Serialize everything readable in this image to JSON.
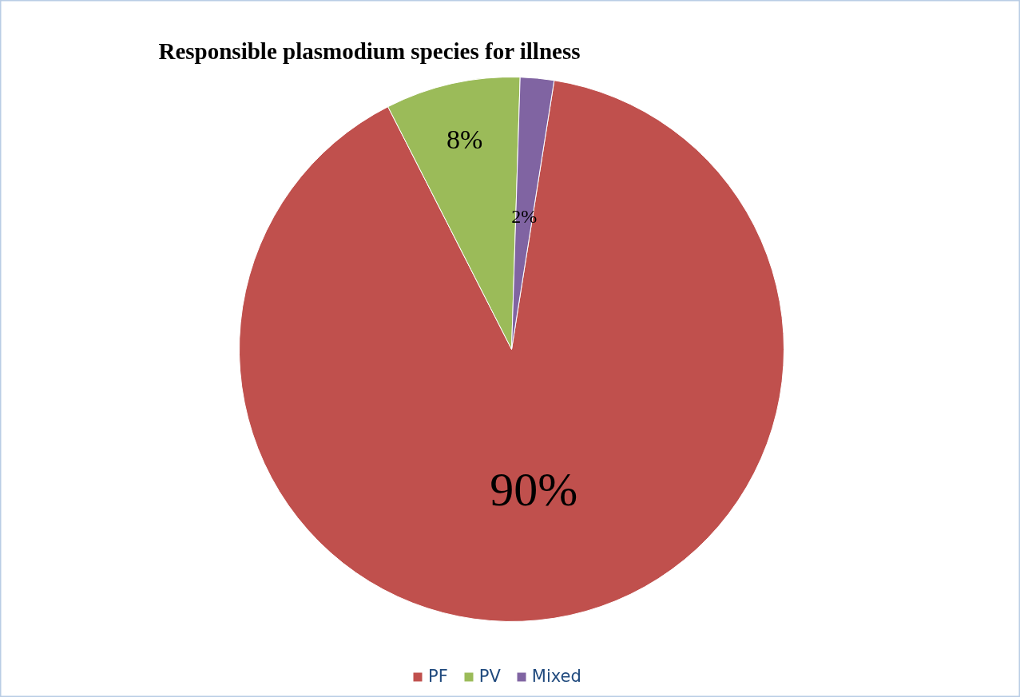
{
  "chart_data": {
    "type": "pie",
    "title": "Responsible plasmodium species for illness",
    "categories": [
      "PF",
      "PV",
      "Mixed"
    ],
    "values": [
      90,
      8,
      2
    ],
    "colors": [
      "#c0504d",
      "#9bbb59",
      "#8064a2"
    ],
    "value_labels": [
      "90%",
      "8%",
      "2%"
    ],
    "legend": "bottom"
  }
}
